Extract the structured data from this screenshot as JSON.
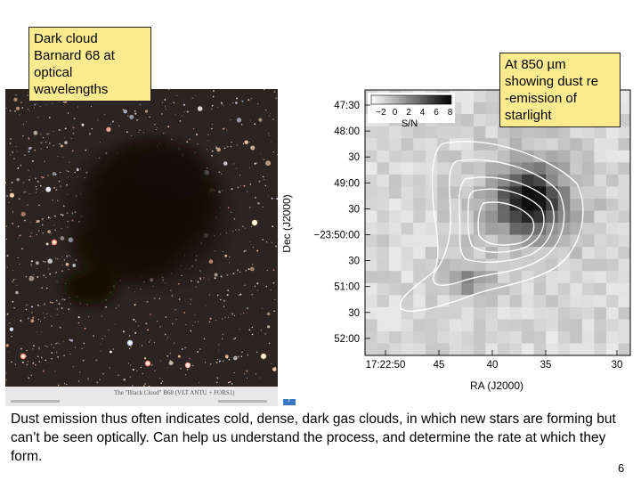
{
  "optical_label": [
    "Dark cloud",
    "Barnard 68 at",
    "optical",
    "wavelengths"
  ],
  "submm_label": [
    "At 850 µm",
    "showing dust re",
    "-emission of",
    "starlight"
  ],
  "photo_caption": "The \"Black Cloud\" B68 (VLT ANTU + FORS1)",
  "map": {
    "dec_ticks": [
      "47:30",
      "48:00",
      "30",
      "49:00",
      "30",
      "−23:50:00",
      "30",
      "51:00",
      "30",
      "52:00"
    ],
    "ra_ticks": [
      "17:22:50",
      "45",
      "40",
      "35",
      "30"
    ],
    "dec_label": "Dec (J2000)",
    "ra_label": "RA (J2000)",
    "colorbar_ticks": [
      "−2",
      "0",
      "2",
      "4",
      "6",
      "8"
    ],
    "colorbar_label": "S/N"
  },
  "body_text": "Dust emission thus often indicates cold, dense, dark gas clouds, in which new stars are forming but can’t be seen optically.  Can help us understand the process, and determine the rate at which they form.",
  "page_number": "6",
  "help_icon": "question-icon"
}
